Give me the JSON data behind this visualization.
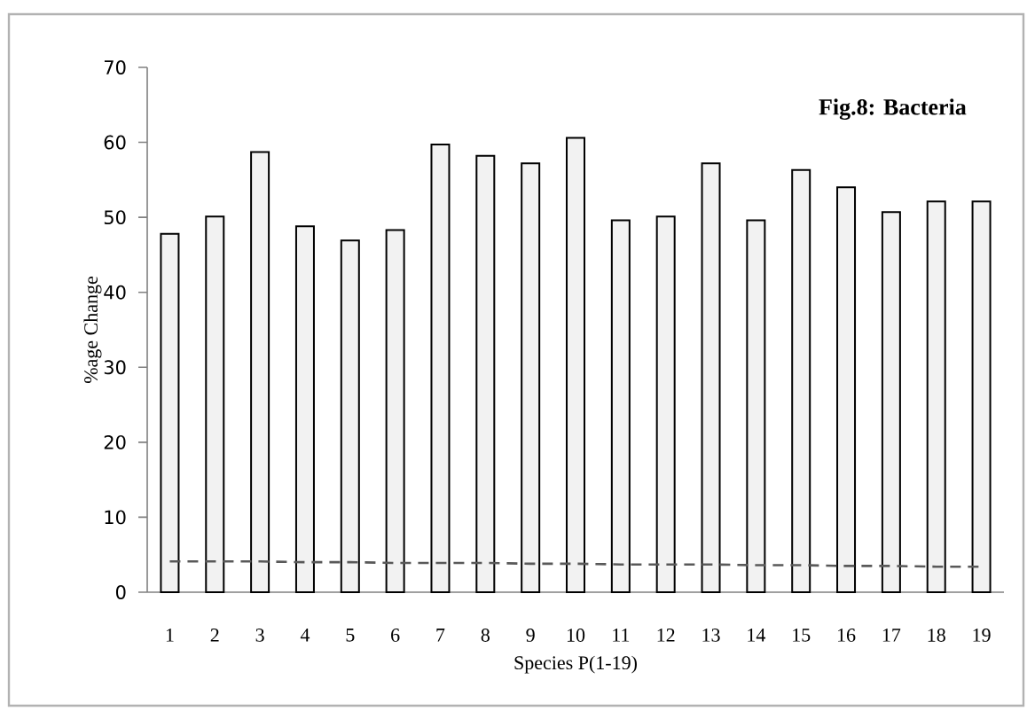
{
  "chart_data": {
    "type": "bar",
    "title": "Fig.8: Bacteria",
    "xlabel": "Species P(1-19)",
    "ylabel": "%age Change",
    "categories": [
      "1",
      "2",
      "3",
      "4",
      "5",
      "6",
      "7",
      "8",
      "9",
      "10",
      "11",
      "12",
      "13",
      "14",
      "15",
      "16",
      "17",
      "18",
      "19"
    ],
    "series": [
      {
        "color": "#f2f2f2",
        "values": [
          47.8,
          50.1,
          58.7,
          48.8,
          46.9,
          48.3,
          59.7,
          58.2,
          57.2,
          60.6,
          49.6,
          50.1,
          57.2,
          49.6,
          56.3,
          54.0,
          50.7,
          52.1,
          52.1
        ]
      },
      {
        "type": "line",
        "color": "#595959",
        "line_style": "dashed",
        "values": [
          4.1,
          4.1,
          4.1,
          4.0,
          4.0,
          3.9,
          3.9,
          3.9,
          3.8,
          3.8,
          3.7,
          3.7,
          3.7,
          3.6,
          3.6,
          3.5,
          3.5,
          3.4,
          3.4
        ]
      }
    ],
    "ylim": [
      0,
      70
    ],
    "yticks": [
      0,
      10,
      20,
      30,
      40,
      50,
      60,
      70
    ],
    "grid": false
  }
}
